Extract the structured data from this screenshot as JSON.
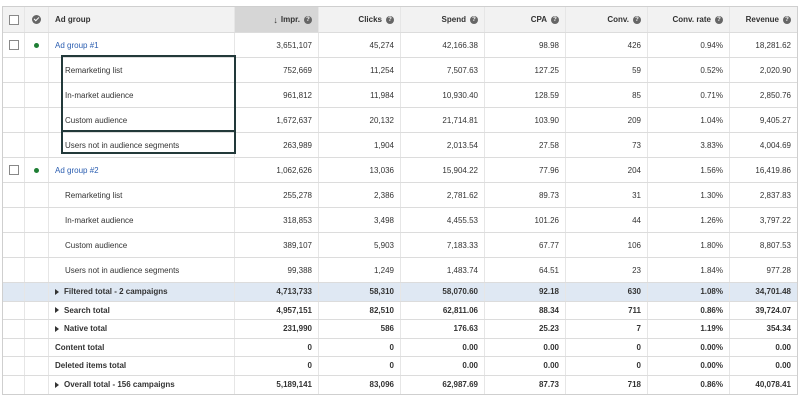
{
  "header": {
    "ad_group": "Ad group",
    "impr": "Impr.",
    "clicks": "Clicks",
    "spend": "Spend",
    "cpa": "CPA",
    "conv": "Conv.",
    "conv_rate": "Conv. rate",
    "revenue": "Revenue",
    "help_glyph": "?"
  },
  "groups": [
    {
      "name": "Ad group #1",
      "impr": "3,651,107",
      "clicks": "45,274",
      "spend": "42,166.38",
      "cpa": "98.98",
      "conv": "426",
      "rate": "0.94%",
      "rev": "18,281.62",
      "subs": [
        {
          "name": "Remarketing list",
          "impr": "752,669",
          "clicks": "11,254",
          "spend": "7,507.63",
          "cpa": "127.25",
          "conv": "59",
          "rate": "0.52%",
          "rev": "2,020.90"
        },
        {
          "name": "In-market audience",
          "impr": "961,812",
          "clicks": "11,984",
          "spend": "10,930.40",
          "cpa": "128.59",
          "conv": "85",
          "rate": "0.71%",
          "rev": "2,850.76"
        },
        {
          "name": "Custom audience",
          "impr": "1,672,637",
          "clicks": "20,132",
          "spend": "21,714.81",
          "cpa": "103.90",
          "conv": "209",
          "rate": "1.04%",
          "rev": "9,405.27"
        },
        {
          "name": "Users not in audience segments",
          "impr": "263,989",
          "clicks": "1,904",
          "spend": "2,013.54",
          "cpa": "27.58",
          "conv": "73",
          "rate": "3.83%",
          "rev": "4,004.69"
        }
      ]
    },
    {
      "name": "Ad group #2",
      "impr": "1,062,626",
      "clicks": "13,036",
      "spend": "15,904.22",
      "cpa": "77.96",
      "conv": "204",
      "rate": "1.56%",
      "rev": "16,419.86",
      "subs": [
        {
          "name": "Remarketing list",
          "impr": "255,278",
          "clicks": "2,386",
          "spend": "2,781.62",
          "cpa": "89.73",
          "conv": "31",
          "rate": "1.30%",
          "rev": "2,837.83"
        },
        {
          "name": "In-market audience",
          "impr": "318,853",
          "clicks": "3,498",
          "spend": "4,455.53",
          "cpa": "101.26",
          "conv": "44",
          "rate": "1.26%",
          "rev": "3,797.22"
        },
        {
          "name": "Custom audience",
          "impr": "389,107",
          "clicks": "5,903",
          "spend": "7,183.33",
          "cpa": "67.77",
          "conv": "106",
          "rate": "1.80%",
          "rev": "8,807.53"
        },
        {
          "name": "Users not in audience segments",
          "impr": "99,388",
          "clicks": "1,249",
          "spend": "1,483.74",
          "cpa": "64.51",
          "conv": "23",
          "rate": "1.84%",
          "rev": "977.28"
        }
      ]
    }
  ],
  "totals": [
    {
      "name": "Filtered total - 2 campaigns",
      "expandable": true,
      "impr": "4,713,733",
      "clicks": "58,310",
      "spend": "58,070.60",
      "cpa": "92.18",
      "conv": "630",
      "rate": "1.08%",
      "rev": "34,701.48"
    },
    {
      "name": "Search total",
      "expandable": true,
      "impr": "4,957,151",
      "clicks": "82,510",
      "spend": "62,811.06",
      "cpa": "88.34",
      "conv": "711",
      "rate": "0.86%",
      "rev": "39,724.07"
    },
    {
      "name": "Native total",
      "expandable": true,
      "impr": "231,990",
      "clicks": "586",
      "spend": "176.63",
      "cpa": "25.23",
      "conv": "7",
      "rate": "1.19%",
      "rev": "354.34"
    },
    {
      "name": "Content total",
      "expandable": false,
      "impr": "0",
      "clicks": "0",
      "spend": "0.00",
      "cpa": "0.00",
      "conv": "0",
      "rate": "0.00%",
      "rev": "0.00"
    },
    {
      "name": "Deleted items total",
      "expandable": false,
      "impr": "0",
      "clicks": "0",
      "spend": "0.00",
      "cpa": "0.00",
      "conv": "0",
      "rate": "0.00%",
      "rev": "0.00"
    },
    {
      "name": "Overall total - 156 campaigns",
      "expandable": true,
      "impr": "5,189,141",
      "clicks": "83,096",
      "spend": "62,987.69",
      "cpa": "87.73",
      "conv": "718",
      "rate": "0.86%",
      "rev": "40,078.41"
    }
  ],
  "colors": {
    "status_active": "#1e7e34",
    "link": "#2a5db0",
    "filtered_bg": "#dfe8f3",
    "highlight_border": "#22393a"
  },
  "icons": {
    "sort": "arrow-down-icon",
    "help": "help-icon",
    "status": "status-check-icon",
    "expand": "expand-triangle-icon"
  }
}
